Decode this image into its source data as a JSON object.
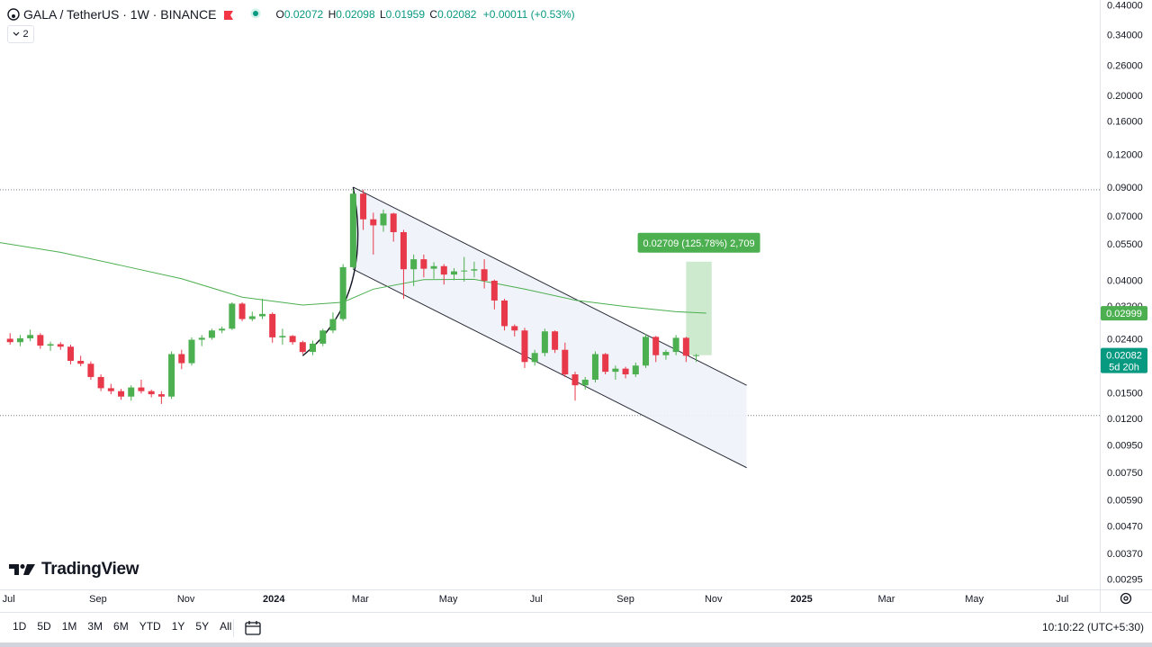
{
  "legend": {
    "symbol": "GALA / TetherUS · 1W · BINANCE",
    "ohlc": {
      "open_label": "O",
      "open": "0.02072",
      "high_label": "H",
      "high": "0.02098",
      "low_label": "L",
      "low": "0.01959",
      "close_label": "C",
      "close": "0.02082",
      "change": "+0.00011 (+0.53%)"
    },
    "indicator_count": "2",
    "icons": [
      "gala-logo-icon",
      "flag-icon",
      "live-dot-icon",
      "chevron-down-icon"
    ]
  },
  "brand": {
    "logo_text": "TradingView"
  },
  "bottom_bar": {
    "ranges": [
      "1D",
      "5D",
      "1M",
      "3M",
      "6M",
      "YTD",
      "1Y",
      "5Y",
      "All"
    ],
    "clock": "10:10:22 (UTC+5:30)",
    "icons": [
      "calendar-icon",
      "settings-icon"
    ]
  },
  "colors": {
    "up": "#26a69a",
    "down": "#ef5350",
    "up_solid": "#4caf50",
    "down_solid": "#e8394a",
    "ma": "#4caf50",
    "channel_fill": "#eef2f8",
    "measure": "#4caf50"
  },
  "chart_data": {
    "type": "candlestick",
    "scale": "log",
    "x_tick_labels": [
      "Jul",
      "Sep",
      "Nov",
      "2024",
      "Mar",
      "May",
      "Jul",
      "Sep",
      "Nov",
      "2025",
      "Mar",
      "May",
      "Jul"
    ],
    "y_tick_labels": [
      "0.44000",
      "0.34000",
      "0.26000",
      "0.20000",
      "0.16000",
      "0.12000",
      "0.09000",
      "0.07000",
      "0.05500",
      "0.04000",
      "0.03200",
      "0.02400",
      "0.01500",
      "0.01200",
      "0.00950",
      "0.00750",
      "0.00590",
      "0.00470",
      "0.00370",
      "0.00295"
    ],
    "ylim": [
      0.0027,
      0.46
    ],
    "xlim": [
      "2023-06-25",
      "2025-07-27"
    ],
    "price_labels": [
      {
        "value": 0.02999,
        "text": "0.02999",
        "color": "#4caf50"
      },
      {
        "value": 0.02082,
        "text": "0.02082",
        "sub": "5d 20h",
        "color": "#089981"
      }
    ],
    "horizontal_levels": [
      0.088,
      0.0123
    ],
    "candles": [
      {
        "t": "2023-07-02",
        "o": 0.024,
        "h": 0.0252,
        "l": 0.0228,
        "c": 0.0233
      },
      {
        "t": "2023-07-09",
        "o": 0.0233,
        "h": 0.0248,
        "l": 0.0225,
        "c": 0.0241
      },
      {
        "t": "2023-07-16",
        "o": 0.0241,
        "h": 0.026,
        "l": 0.0235,
        "c": 0.0248
      },
      {
        "t": "2023-07-23",
        "o": 0.0248,
        "h": 0.0252,
        "l": 0.022,
        "c": 0.0226
      },
      {
        "t": "2023-07-30",
        "o": 0.0226,
        "h": 0.0234,
        "l": 0.0216,
        "c": 0.0229
      },
      {
        "t": "2023-08-06",
        "o": 0.0229,
        "h": 0.0233,
        "l": 0.0218,
        "c": 0.0224
      },
      {
        "t": "2023-08-13",
        "o": 0.0224,
        "h": 0.0228,
        "l": 0.0192,
        "c": 0.0198
      },
      {
        "t": "2023-08-20",
        "o": 0.0198,
        "h": 0.0207,
        "l": 0.0189,
        "c": 0.0193
      },
      {
        "t": "2023-08-27",
        "o": 0.0193,
        "h": 0.0197,
        "l": 0.0168,
        "c": 0.0172
      },
      {
        "t": "2023-09-03",
        "o": 0.0172,
        "h": 0.0176,
        "l": 0.0152,
        "c": 0.0156
      },
      {
        "t": "2023-09-10",
        "o": 0.0156,
        "h": 0.0162,
        "l": 0.0148,
        "c": 0.0152
      },
      {
        "t": "2023-09-17",
        "o": 0.0152,
        "h": 0.0155,
        "l": 0.0141,
        "c": 0.0145
      },
      {
        "t": "2023-09-24",
        "o": 0.0145,
        "h": 0.016,
        "l": 0.014,
        "c": 0.0157
      },
      {
        "t": "2023-10-01",
        "o": 0.0157,
        "h": 0.0168,
        "l": 0.0149,
        "c": 0.0152
      },
      {
        "t": "2023-10-08",
        "o": 0.0152,
        "h": 0.0154,
        "l": 0.0144,
        "c": 0.0148
      },
      {
        "t": "2023-10-15",
        "o": 0.0148,
        "h": 0.0152,
        "l": 0.0136,
        "c": 0.0145
      },
      {
        "t": "2023-10-22",
        "o": 0.0145,
        "h": 0.0215,
        "l": 0.0142,
        "c": 0.021
      },
      {
        "t": "2023-10-29",
        "o": 0.021,
        "h": 0.0218,
        "l": 0.0184,
        "c": 0.0194
      },
      {
        "t": "2023-11-05",
        "o": 0.0194,
        "h": 0.0243,
        "l": 0.019,
        "c": 0.0238
      },
      {
        "t": "2023-11-12",
        "o": 0.0238,
        "h": 0.0248,
        "l": 0.0225,
        "c": 0.0242
      },
      {
        "t": "2023-11-19",
        "o": 0.0242,
        "h": 0.0262,
        "l": 0.0238,
        "c": 0.0258
      },
      {
        "t": "2023-11-26",
        "o": 0.0258,
        "h": 0.0267,
        "l": 0.0252,
        "c": 0.0262
      },
      {
        "t": "2023-12-03",
        "o": 0.0262,
        "h": 0.033,
        "l": 0.0259,
        "c": 0.0326
      },
      {
        "t": "2023-12-10",
        "o": 0.0326,
        "h": 0.033,
        "l": 0.028,
        "c": 0.0285
      },
      {
        "t": "2023-12-17",
        "o": 0.0285,
        "h": 0.0304,
        "l": 0.028,
        "c": 0.0292
      },
      {
        "t": "2023-12-24",
        "o": 0.0292,
        "h": 0.034,
        "l": 0.0285,
        "c": 0.0298
      },
      {
        "t": "2023-12-31",
        "o": 0.0298,
        "h": 0.0302,
        "l": 0.0232,
        "c": 0.0243
      },
      {
        "t": "2024-01-07",
        "o": 0.0243,
        "h": 0.0262,
        "l": 0.0228,
        "c": 0.0246
      },
      {
        "t": "2024-01-14",
        "o": 0.0246,
        "h": 0.0248,
        "l": 0.0228,
        "c": 0.0233
      },
      {
        "t": "2024-01-21",
        "o": 0.0233,
        "h": 0.0236,
        "l": 0.021,
        "c": 0.0214
      },
      {
        "t": "2024-01-28",
        "o": 0.0214,
        "h": 0.0236,
        "l": 0.0208,
        "c": 0.023
      },
      {
        "t": "2024-02-04",
        "o": 0.023,
        "h": 0.0262,
        "l": 0.0225,
        "c": 0.0258
      },
      {
        "t": "2024-02-11",
        "o": 0.0258,
        "h": 0.0302,
        "l": 0.0252,
        "c": 0.0285
      },
      {
        "t": "2024-02-18",
        "o": 0.0285,
        "h": 0.046,
        "l": 0.028,
        "c": 0.0448
      },
      {
        "t": "2024-02-25",
        "o": 0.0448,
        "h": 0.088,
        "l": 0.044,
        "c": 0.085
      },
      {
        "t": "2024-03-03",
        "o": 0.085,
        "h": 0.088,
        "l": 0.062,
        "c": 0.068
      },
      {
        "t": "2024-03-10",
        "o": 0.068,
        "h": 0.072,
        "l": 0.05,
        "c": 0.0645
      },
      {
        "t": "2024-03-17",
        "o": 0.0645,
        "h": 0.074,
        "l": 0.061,
        "c": 0.0715
      },
      {
        "t": "2024-03-24",
        "o": 0.0715,
        "h": 0.072,
        "l": 0.056,
        "c": 0.0608
      },
      {
        "t": "2024-03-31",
        "o": 0.0608,
        "h": 0.062,
        "l": 0.034,
        "c": 0.044
      },
      {
        "t": "2024-04-07",
        "o": 0.044,
        "h": 0.05,
        "l": 0.038,
        "c": 0.048
      },
      {
        "t": "2024-04-14",
        "o": 0.048,
        "h": 0.05,
        "l": 0.041,
        "c": 0.0442
      },
      {
        "t": "2024-04-21",
        "o": 0.0442,
        "h": 0.0468,
        "l": 0.0405,
        "c": 0.0452
      },
      {
        "t": "2024-04-28",
        "o": 0.0452,
        "h": 0.046,
        "l": 0.0385,
        "c": 0.042
      },
      {
        "t": "2024-05-05",
        "o": 0.042,
        "h": 0.0444,
        "l": 0.04,
        "c": 0.0432
      },
      {
        "t": "2024-05-12",
        "o": 0.0432,
        "h": 0.049,
        "l": 0.0395,
        "c": 0.0435
      },
      {
        "t": "2024-05-19",
        "o": 0.0435,
        "h": 0.047,
        "l": 0.041,
        "c": 0.044
      },
      {
        "t": "2024-05-26",
        "o": 0.044,
        "h": 0.048,
        "l": 0.0372,
        "c": 0.0398
      },
      {
        "t": "2024-06-02",
        "o": 0.0398,
        "h": 0.0402,
        "l": 0.031,
        "c": 0.0335
      },
      {
        "t": "2024-06-09",
        "o": 0.0335,
        "h": 0.034,
        "l": 0.0258,
        "c": 0.0268
      },
      {
        "t": "2024-06-16",
        "o": 0.0268,
        "h": 0.0272,
        "l": 0.0245,
        "c": 0.0258
      },
      {
        "t": "2024-06-23",
        "o": 0.0258,
        "h": 0.0264,
        "l": 0.0186,
        "c": 0.0196
      },
      {
        "t": "2024-06-30",
        "o": 0.0196,
        "h": 0.0218,
        "l": 0.019,
        "c": 0.0212
      },
      {
        "t": "2024-07-07",
        "o": 0.0212,
        "h": 0.0262,
        "l": 0.0206,
        "c": 0.0256
      },
      {
        "t": "2024-07-14",
        "o": 0.0256,
        "h": 0.0258,
        "l": 0.0212,
        "c": 0.0218
      },
      {
        "t": "2024-07-21",
        "o": 0.0218,
        "h": 0.0232,
        "l": 0.0172,
        "c": 0.0176
      },
      {
        "t": "2024-07-28",
        "o": 0.0176,
        "h": 0.018,
        "l": 0.014,
        "c": 0.016
      },
      {
        "t": "2024-08-04",
        "o": 0.016,
        "h": 0.0172,
        "l": 0.0154,
        "c": 0.0168
      },
      {
        "t": "2024-08-11",
        "o": 0.0168,
        "h": 0.0215,
        "l": 0.0164,
        "c": 0.021
      },
      {
        "t": "2024-08-18",
        "o": 0.021,
        "h": 0.0212,
        "l": 0.0176,
        "c": 0.018
      },
      {
        "t": "2024-08-25",
        "o": 0.018,
        "h": 0.019,
        "l": 0.0168,
        "c": 0.0185
      },
      {
        "t": "2024-09-01",
        "o": 0.0185,
        "h": 0.0188,
        "l": 0.017,
        "c": 0.0176
      },
      {
        "t": "2024-09-08",
        "o": 0.0176,
        "h": 0.0195,
        "l": 0.0172,
        "c": 0.019
      },
      {
        "t": "2024-09-15",
        "o": 0.019,
        "h": 0.025,
        "l": 0.0186,
        "c": 0.0244
      },
      {
        "t": "2024-09-22",
        "o": 0.0244,
        "h": 0.0246,
        "l": 0.0196,
        "c": 0.0208
      },
      {
        "t": "2024-09-29",
        "o": 0.0208,
        "h": 0.0218,
        "l": 0.02,
        "c": 0.0214
      },
      {
        "t": "2024-10-06",
        "o": 0.0214,
        "h": 0.0248,
        "l": 0.0208,
        "c": 0.0242
      },
      {
        "t": "2024-10-13",
        "o": 0.0242,
        "h": 0.0244,
        "l": 0.0196,
        "c": 0.0207
      },
      {
        "t": "2024-10-20",
        "o": 0.0207,
        "h": 0.021,
        "l": 0.0196,
        "c": 0.0208
      }
    ],
    "moving_average": [
      {
        "t": "2023-06-25",
        "v": 0.0555
      },
      {
        "t": "2023-08-06",
        "v": 0.051
      },
      {
        "t": "2023-09-17",
        "v": 0.0455
      },
      {
        "t": "2023-10-29",
        "v": 0.0405
      },
      {
        "t": "2023-12-10",
        "v": 0.0345
      },
      {
        "t": "2024-01-21",
        "v": 0.0322
      },
      {
        "t": "2024-02-18",
        "v": 0.033
      },
      {
        "t": "2024-03-10",
        "v": 0.037
      },
      {
        "t": "2024-04-14",
        "v": 0.0402
      },
      {
        "t": "2024-05-19",
        "v": 0.0403
      },
      {
        "t": "2024-06-23",
        "v": 0.037
      },
      {
        "t": "2024-07-28",
        "v": 0.0336
      },
      {
        "t": "2024-09-01",
        "v": 0.0318
      },
      {
        "t": "2024-10-06",
        "v": 0.0304
      },
      {
        "t": "2024-10-27",
        "v": 0.03
      }
    ],
    "drawings": {
      "channel": {
        "upper": [
          {
            "t": "2024-02-25",
            "v": 0.09
          },
          {
            "t": "2024-11-24",
            "v": 0.016
          }
        ],
        "lower": [
          {
            "t": "2024-02-25",
            "v": 0.044
          },
          {
            "t": "2024-11-24",
            "v": 0.0078
          }
        ]
      },
      "curve": [
        {
          "t": "2024-01-21",
          "v": 0.0207
        },
        {
          "t": "2024-02-22",
          "v": 0.034
        },
        {
          "t": "2024-02-25",
          "v": 0.09
        }
      ],
      "measure": {
        "from": {
          "t": "2024-10-13",
          "v": 0.0208
        },
        "to": {
          "t": "2024-10-27",
          "v": 0.047
        },
        "label": "0.02709 (125.78%) 2,709"
      }
    }
  }
}
